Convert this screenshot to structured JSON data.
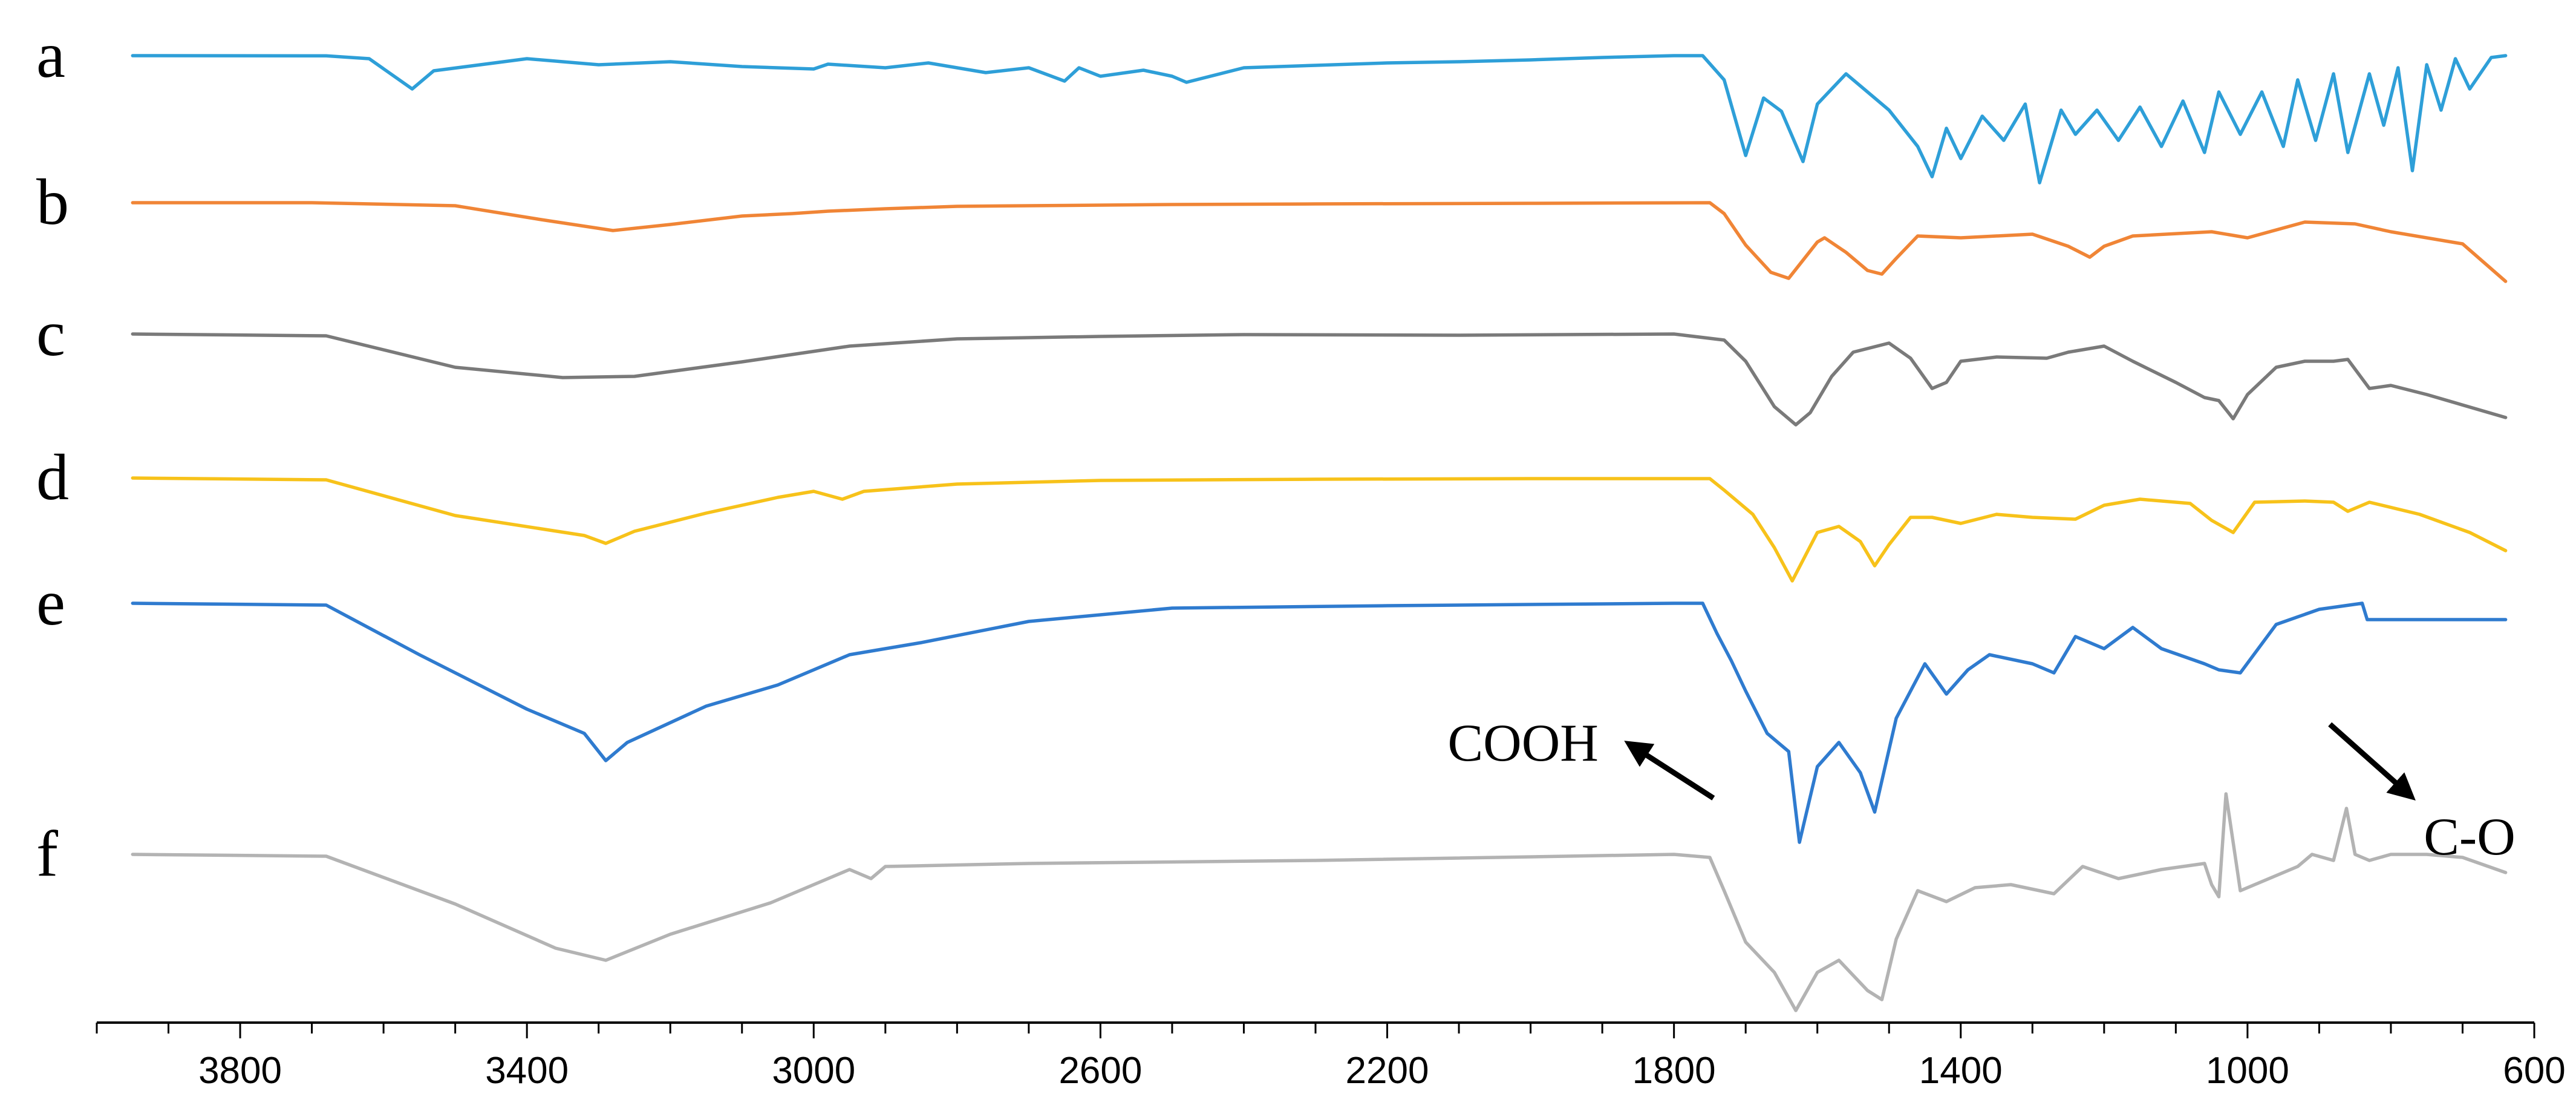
{
  "chart_data": {
    "type": "line",
    "title": "",
    "xlabel": "",
    "ylabel": "",
    "xlim": [
      4000,
      600
    ],
    "x_reversed": true,
    "grid": false,
    "x_ticks": [
      3800,
      3400,
      3000,
      2600,
      2200,
      1800,
      1400,
      1000,
      600
    ],
    "x_tick_labels": [
      "3800",
      "3400",
      "3000",
      "2600",
      "2200",
      "1800",
      "1400",
      "1000",
      "600"
    ],
    "minor_tick_step": 100,
    "series": [
      {
        "name": "a",
        "color": "#2E9FD8",
        "points": [
          [
            3950,
            0
          ],
          [
            3680,
            0.3
          ],
          [
            3620,
            5
          ],
          [
            3560,
            55
          ],
          [
            3530,
            25
          ],
          [
            3400,
            5
          ],
          [
            3300,
            15
          ],
          [
            3200,
            10
          ],
          [
            3100,
            18
          ],
          [
            3000,
            22
          ],
          [
            2980,
            14
          ],
          [
            2900,
            20
          ],
          [
            2840,
            12
          ],
          [
            2760,
            28
          ],
          [
            2700,
            20
          ],
          [
            2650,
            42
          ],
          [
            2630,
            20
          ],
          [
            2600,
            34
          ],
          [
            2540,
            24
          ],
          [
            2500,
            34
          ],
          [
            2480,
            44
          ],
          [
            2400,
            20
          ],
          [
            2300,
            16
          ],
          [
            2200,
            12
          ],
          [
            2100,
            10
          ],
          [
            2000,
            7
          ],
          [
            1900,
            3
          ],
          [
            1800,
            0
          ],
          [
            1760,
            0
          ],
          [
            1730,
            40
          ],
          [
            1700,
            165
          ],
          [
            1675,
            70
          ],
          [
            1650,
            92
          ],
          [
            1620,
            175
          ],
          [
            1600,
            80
          ],
          [
            1560,
            30
          ],
          [
            1530,
            60
          ],
          [
            1500,
            90
          ],
          [
            1480,
            120
          ],
          [
            1460,
            150
          ],
          [
            1440,
            200
          ],
          [
            1420,
            120
          ],
          [
            1400,
            170
          ],
          [
            1370,
            100
          ],
          [
            1340,
            140
          ],
          [
            1310,
            80
          ],
          [
            1290,
            210
          ],
          [
            1260,
            90
          ],
          [
            1240,
            130
          ],
          [
            1210,
            90
          ],
          [
            1180,
            140
          ],
          [
            1150,
            85
          ],
          [
            1120,
            150
          ],
          [
            1090,
            75
          ],
          [
            1060,
            160
          ],
          [
            1040,
            60
          ],
          [
            1010,
            130
          ],
          [
            980,
            60
          ],
          [
            950,
            150
          ],
          [
            930,
            40
          ],
          [
            905,
            140
          ],
          [
            880,
            30
          ],
          [
            860,
            160
          ],
          [
            830,
            30
          ],
          [
            810,
            115
          ],
          [
            790,
            20
          ],
          [
            770,
            190
          ],
          [
            750,
            15
          ],
          [
            730,
            90
          ],
          [
            710,
            5
          ],
          [
            690,
            55
          ],
          [
            660,
            3
          ],
          [
            640,
            0
          ]
        ]
      },
      {
        "name": "b",
        "color": "#F08536",
        "points": [
          [
            3950,
            0
          ],
          [
            3700,
            0
          ],
          [
            3500,
            5
          ],
          [
            3380,
            28
          ],
          [
            3280,
            46
          ],
          [
            3200,
            36
          ],
          [
            3100,
            22
          ],
          [
            3030,
            18
          ],
          [
            2980,
            14
          ],
          [
            2900,
            10
          ],
          [
            2800,
            6
          ],
          [
            2500,
            3
          ],
          [
            2300,
            2
          ],
          [
            2000,
            1
          ],
          [
            1750,
            0
          ],
          [
            1730,
            18
          ],
          [
            1700,
            70
          ],
          [
            1665,
            115
          ],
          [
            1640,
            125
          ],
          [
            1600,
            65
          ],
          [
            1590,
            58
          ],
          [
            1560,
            82
          ],
          [
            1530,
            112
          ],
          [
            1510,
            118
          ],
          [
            1490,
            92
          ],
          [
            1460,
            55
          ],
          [
            1400,
            58
          ],
          [
            1300,
            52
          ],
          [
            1250,
            72
          ],
          [
            1220,
            90
          ],
          [
            1200,
            72
          ],
          [
            1160,
            55
          ],
          [
            1050,
            48
          ],
          [
            1000,
            58
          ],
          [
            920,
            32
          ],
          [
            850,
            35
          ],
          [
            800,
            48
          ],
          [
            700,
            68
          ],
          [
            640,
            130
          ]
        ]
      },
      {
        "name": "c",
        "color": "#7A7A7A",
        "points": [
          [
            3950,
            0
          ],
          [
            3680,
            3
          ],
          [
            3500,
            55
          ],
          [
            3350,
            72
          ],
          [
            3250,
            70
          ],
          [
            3100,
            46
          ],
          [
            2950,
            20
          ],
          [
            2800,
            8
          ],
          [
            2600,
            4
          ],
          [
            2400,
            1
          ],
          [
            2100,
            2
          ],
          [
            1800,
            0
          ],
          [
            1730,
            10
          ],
          [
            1700,
            45
          ],
          [
            1660,
            120
          ],
          [
            1630,
            150
          ],
          [
            1610,
            130
          ],
          [
            1580,
            70
          ],
          [
            1550,
            30
          ],
          [
            1500,
            15
          ],
          [
            1470,
            40
          ],
          [
            1440,
            90
          ],
          [
            1420,
            80
          ],
          [
            1400,
            45
          ],
          [
            1350,
            38
          ],
          [
            1280,
            40
          ],
          [
            1250,
            30
          ],
          [
            1200,
            20
          ],
          [
            1160,
            45
          ],
          [
            1100,
            80
          ],
          [
            1060,
            105
          ],
          [
            1040,
            110
          ],
          [
            1020,
            140
          ],
          [
            1000,
            100
          ],
          [
            960,
            55
          ],
          [
            920,
            45
          ],
          [
            880,
            45
          ],
          [
            860,
            42
          ],
          [
            830,
            90
          ],
          [
            800,
            85
          ],
          [
            750,
            100
          ],
          [
            640,
            138
          ]
        ]
      },
      {
        "name": "d",
        "color": "#F7C21A",
        "points": [
          [
            3950,
            0
          ],
          [
            3680,
            3
          ],
          [
            3500,
            62
          ],
          [
            3320,
            95
          ],
          [
            3290,
            108
          ],
          [
            3250,
            88
          ],
          [
            3150,
            58
          ],
          [
            3050,
            32
          ],
          [
            3000,
            22
          ],
          [
            2960,
            35
          ],
          [
            2930,
            22
          ],
          [
            2800,
            10
          ],
          [
            2600,
            4
          ],
          [
            2300,
            2
          ],
          [
            2000,
            1
          ],
          [
            1750,
            1
          ],
          [
            1730,
            20
          ],
          [
            1690,
            60
          ],
          [
            1660,
            115
          ],
          [
            1635,
            170
          ],
          [
            1600,
            90
          ],
          [
            1570,
            80
          ],
          [
            1540,
            105
          ],
          [
            1520,
            145
          ],
          [
            1500,
            110
          ],
          [
            1470,
            65
          ],
          [
            1440,
            65
          ],
          [
            1400,
            75
          ],
          [
            1350,
            60
          ],
          [
            1300,
            65
          ],
          [
            1240,
            68
          ],
          [
            1200,
            45
          ],
          [
            1150,
            35
          ],
          [
            1080,
            42
          ],
          [
            1050,
            70
          ],
          [
            1020,
            90
          ],
          [
            990,
            40
          ],
          [
            920,
            38
          ],
          [
            880,
            40
          ],
          [
            860,
            55
          ],
          [
            830,
            40
          ],
          [
            760,
            60
          ],
          [
            690,
            90
          ],
          [
            640,
            120
          ]
        ]
      },
      {
        "name": "e",
        "color": "#2F7BCF",
        "points": [
          [
            3950,
            0
          ],
          [
            3680,
            3
          ],
          [
            3550,
            85
          ],
          [
            3400,
            175
          ],
          [
            3320,
            215
          ],
          [
            3290,
            260
          ],
          [
            3260,
            230
          ],
          [
            3150,
            170
          ],
          [
            3050,
            135
          ],
          [
            3000,
            110
          ],
          [
            2950,
            85
          ],
          [
            2850,
            65
          ],
          [
            2700,
            30
          ],
          [
            2500,
            8
          ],
          [
            2200,
            4
          ],
          [
            1800,
            0
          ],
          [
            1760,
            0
          ],
          [
            1740,
            50
          ],
          [
            1720,
            95
          ],
          [
            1700,
            145
          ],
          [
            1670,
            215
          ],
          [
            1640,
            245
          ],
          [
            1625,
            395
          ],
          [
            1600,
            270
          ],
          [
            1570,
            230
          ],
          [
            1540,
            280
          ],
          [
            1520,
            345
          ],
          [
            1490,
            190
          ],
          [
            1450,
            100
          ],
          [
            1420,
            150
          ],
          [
            1390,
            110
          ],
          [
            1360,
            85
          ],
          [
            1300,
            100
          ],
          [
            1270,
            115
          ],
          [
            1240,
            55
          ],
          [
            1200,
            75
          ],
          [
            1160,
            40
          ],
          [
            1120,
            75
          ],
          [
            1060,
            100
          ],
          [
            1040,
            110
          ],
          [
            1010,
            115
          ],
          [
            960,
            35
          ],
          [
            900,
            10
          ],
          [
            840,
            0
          ],
          [
            833,
            27
          ],
          [
            780,
            27
          ],
          [
            640,
            27
          ]
        ]
      },
      {
        "name": "f",
        "color": "#B3B3B3",
        "points": [
          [
            3950,
            0
          ],
          [
            3680,
            3
          ],
          [
            3500,
            82
          ],
          [
            3360,
            155
          ],
          [
            3290,
            175
          ],
          [
            3200,
            132
          ],
          [
            3060,
            80
          ],
          [
            3000,
            50
          ],
          [
            2980,
            40
          ],
          [
            2950,
            25
          ],
          [
            2920,
            40
          ],
          [
            2900,
            20
          ],
          [
            2700,
            15
          ],
          [
            2300,
            10
          ],
          [
            1800,
            0
          ],
          [
            1750,
            5
          ],
          [
            1730,
            60
          ],
          [
            1700,
            145
          ],
          [
            1660,
            195
          ],
          [
            1630,
            258
          ],
          [
            1600,
            195
          ],
          [
            1570,
            175
          ],
          [
            1530,
            225
          ],
          [
            1510,
            240
          ],
          [
            1490,
            140
          ],
          [
            1460,
            60
          ],
          [
            1420,
            78
          ],
          [
            1380,
            55
          ],
          [
            1330,
            50
          ],
          [
            1270,
            65
          ],
          [
            1230,
            20
          ],
          [
            1180,
            40
          ],
          [
            1120,
            25
          ],
          [
            1060,
            15
          ],
          [
            1050,
            50
          ],
          [
            1040,
            70
          ],
          [
            1030,
            -100
          ],
          [
            1010,
            60
          ],
          [
            980,
            45
          ],
          [
            930,
            20
          ],
          [
            910,
            0
          ],
          [
            880,
            10
          ],
          [
            862,
            -76
          ],
          [
            850,
            0
          ],
          [
            830,
            10
          ],
          [
            800,
            0
          ],
          [
            750,
            0
          ],
          [
            700,
            5
          ],
          [
            640,
            30
          ]
        ]
      }
    ],
    "annotations": [
      {
        "text": "COOH",
        "tip_x": 1745,
        "tip_series": "e",
        "tip_offset": 322
      },
      {
        "text": "C-O",
        "tip_x": 885,
        "tip_series": "e",
        "tip_offset": 200
      }
    ]
  }
}
